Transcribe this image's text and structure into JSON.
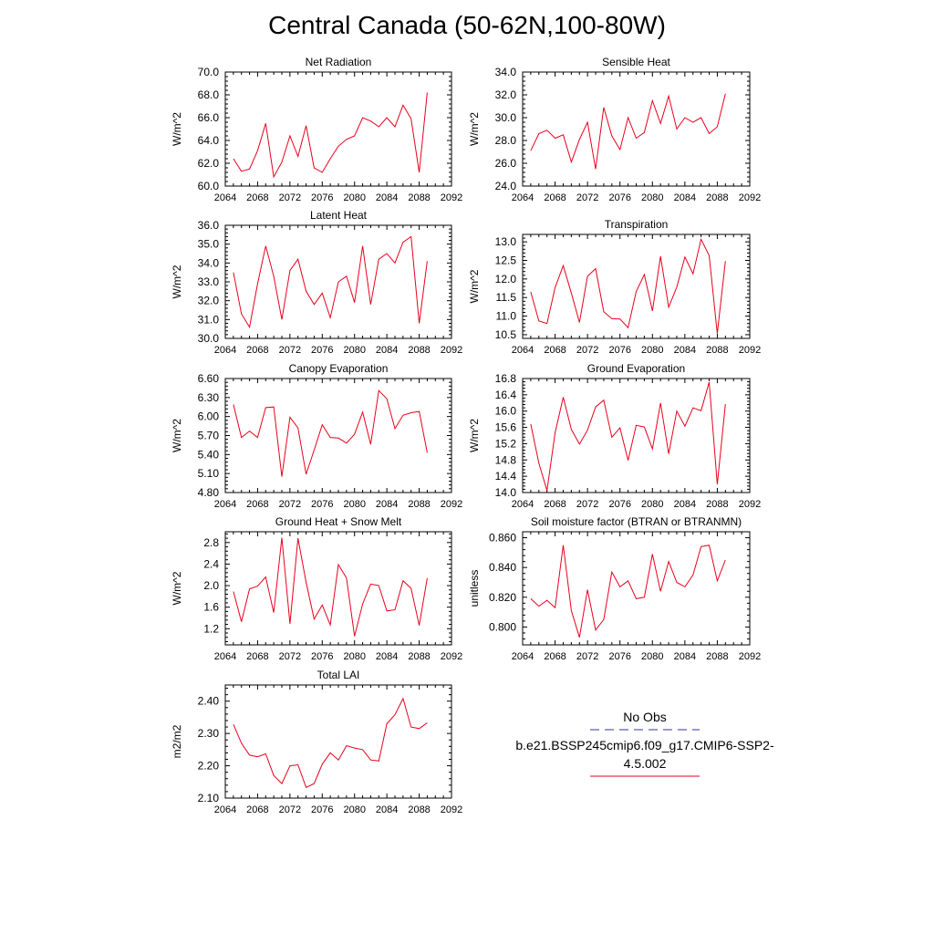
{
  "title": "Central Canada (50-62N,100-80W)",
  "legend": {
    "entries": [
      {
        "label": "No Obs",
        "color": "#3333aa",
        "style": "dashed"
      },
      {
        "label": "b.e21.BSSP245cmip6.f09_g17.CMIP6-SSP2-4.5.002",
        "color": "#e8001c",
        "style": "solid"
      }
    ]
  },
  "chart_data": [
    {
      "type": "line",
      "title": "Net Radiation",
      "ylabel": "W/m^2",
      "xlabel": "",
      "xlim": [
        2064,
        2092
      ],
      "ylim": [
        60.0,
        70.0
      ],
      "xticks": [
        "2064",
        "2068",
        "2072",
        "2076",
        "2080",
        "2084",
        "2088",
        "2092"
      ],
      "yticks": [
        "60.0",
        "62.0",
        "64.0",
        "66.0",
        "68.0",
        "70.0"
      ],
      "x": [
        2065,
        2066,
        2067,
        2068,
        2069,
        2070,
        2071,
        2072,
        2073,
        2074,
        2075,
        2076,
        2077,
        2078,
        2079,
        2080,
        2081,
        2082,
        2083,
        2084,
        2085,
        2086,
        2087,
        2088,
        2089
      ],
      "series": [
        {
          "color": "#e8001c",
          "values": [
            62.4,
            61.3,
            61.5,
            63.1,
            65.5,
            60.8,
            62.1,
            64.4,
            62.6,
            65.3,
            61.6,
            61.2,
            62.4,
            63.5,
            64.1,
            64.4,
            66.0,
            65.7,
            65.2,
            66.0,
            65.2,
            67.1,
            65.9,
            61.2,
            68.2
          ]
        }
      ]
    },
    {
      "type": "line",
      "title": "Sensible Heat",
      "ylabel": "W/m^2",
      "xlabel": "",
      "xlim": [
        2064,
        2092
      ],
      "ylim": [
        24.0,
        34.0
      ],
      "xticks": [
        "2064",
        "2068",
        "2072",
        "2076",
        "2080",
        "2084",
        "2088",
        "2092"
      ],
      "yticks": [
        "24.0",
        "26.0",
        "28.0",
        "30.0",
        "32.0",
        "34.0"
      ],
      "x": [
        2065,
        2066,
        2067,
        2068,
        2069,
        2070,
        2071,
        2072,
        2073,
        2074,
        2075,
        2076,
        2077,
        2078,
        2079,
        2080,
        2081,
        2082,
        2083,
        2084,
        2085,
        2086,
        2087,
        2088,
        2089
      ],
      "series": [
        {
          "color": "#e8001c",
          "values": [
            27.1,
            28.6,
            28.9,
            28.2,
            28.5,
            26.1,
            28.1,
            29.6,
            25.5,
            30.9,
            28.4,
            27.2,
            30.0,
            28.2,
            28.7,
            31.5,
            29.5,
            31.9,
            29.0,
            30.0,
            29.6,
            30.0,
            28.6,
            29.2,
            32.1
          ]
        }
      ]
    },
    {
      "type": "line",
      "title": "Latent Heat",
      "ylabel": "W/m^2",
      "xlabel": "",
      "xlim": [
        2064,
        2092
      ],
      "ylim": [
        30.0,
        36.0
      ],
      "xticks": [
        "2064",
        "2068",
        "2072",
        "2076",
        "2080",
        "2084",
        "2088",
        "2092"
      ],
      "yticks": [
        "30.0",
        "31.0",
        "32.0",
        "33.0",
        "34.0",
        "35.0",
        "36.0"
      ],
      "x": [
        2065,
        2066,
        2067,
        2068,
        2069,
        2070,
        2071,
        2072,
        2073,
        2074,
        2075,
        2076,
        2077,
        2078,
        2079,
        2080,
        2081,
        2082,
        2083,
        2084,
        2085,
        2086,
        2087,
        2088,
        2089
      ],
      "series": [
        {
          "color": "#e8001c",
          "values": [
            33.5,
            31.3,
            30.6,
            32.9,
            34.9,
            33.3,
            31.0,
            33.6,
            34.2,
            32.5,
            31.8,
            32.4,
            31.1,
            33.0,
            33.3,
            31.9,
            34.9,
            31.8,
            34.2,
            34.5,
            34.0,
            35.1,
            35.4,
            30.8,
            34.1
          ]
        }
      ]
    },
    {
      "type": "line",
      "title": "Transpiration",
      "ylabel": "W/m^2",
      "xlabel": "",
      "xlim": [
        2064,
        2092
      ],
      "ylim": [
        10.4,
        13.2
      ],
      "xticks": [
        "2064",
        "2068",
        "2072",
        "2076",
        "2080",
        "2084",
        "2088",
        "2092"
      ],
      "yticks": [
        "10.5",
        "11.0",
        "11.5",
        "12.0",
        "12.5",
        "13.0"
      ],
      "x": [
        2065,
        2066,
        2067,
        2068,
        2069,
        2070,
        2071,
        2072,
        2073,
        2074,
        2075,
        2076,
        2077,
        2078,
        2079,
        2080,
        2081,
        2082,
        2083,
        2084,
        2085,
        2086,
        2087,
        2088,
        2089
      ],
      "series": [
        {
          "color": "#e8001c",
          "values": [
            11.65,
            10.87,
            10.8,
            11.77,
            12.36,
            11.62,
            10.83,
            12.07,
            12.28,
            11.12,
            10.93,
            10.92,
            10.69,
            11.66,
            12.12,
            11.14,
            12.61,
            11.24,
            11.78,
            12.59,
            12.14,
            13.07,
            12.63,
            10.53,
            12.48
          ]
        }
      ]
    },
    {
      "type": "line",
      "title": "Canopy Evaporation",
      "ylabel": "W/m^2",
      "xlabel": "",
      "xlim": [
        2064,
        2092
      ],
      "ylim": [
        4.8,
        6.6
      ],
      "xticks": [
        "2064",
        "2068",
        "2072",
        "2076",
        "2080",
        "2084",
        "2088",
        "2092"
      ],
      "yticks": [
        "4.80",
        "5.10",
        "5.40",
        "5.70",
        "6.00",
        "6.30",
        "6.60"
      ],
      "x": [
        2065,
        2066,
        2067,
        2068,
        2069,
        2070,
        2071,
        2072,
        2073,
        2074,
        2075,
        2076,
        2077,
        2078,
        2079,
        2080,
        2081,
        2082,
        2083,
        2084,
        2085,
        2086,
        2087,
        2088,
        2089
      ],
      "series": [
        {
          "color": "#e8001c",
          "values": [
            6.19,
            5.67,
            5.77,
            5.67,
            6.14,
            6.15,
            5.05,
            5.99,
            5.82,
            5.09,
            5.47,
            5.87,
            5.67,
            5.66,
            5.58,
            5.72,
            6.07,
            5.56,
            6.41,
            6.28,
            5.81,
            6.02,
            6.06,
            6.08,
            5.43
          ]
        }
      ]
    },
    {
      "type": "line",
      "title": "Ground Evaporation",
      "ylabel": "W/m^2",
      "xlabel": "",
      "xlim": [
        2064,
        2092
      ],
      "ylim": [
        14.0,
        16.8
      ],
      "xticks": [
        "2064",
        "2068",
        "2072",
        "2076",
        "2080",
        "2084",
        "2088",
        "2092"
      ],
      "yticks": [
        "14.0",
        "14.4",
        "14.8",
        "15.2",
        "15.6",
        "16.0",
        "16.4",
        "16.8"
      ],
      "x": [
        2065,
        2066,
        2067,
        2068,
        2069,
        2070,
        2071,
        2072,
        2073,
        2074,
        2075,
        2076,
        2077,
        2078,
        2079,
        2080,
        2081,
        2082,
        2083,
        2084,
        2085,
        2086,
        2087,
        2088,
        2089
      ],
      "series": [
        {
          "color": "#e8001c",
          "values": [
            15.68,
            14.72,
            14.05,
            15.47,
            16.34,
            15.55,
            15.19,
            15.53,
            16.1,
            16.27,
            15.36,
            15.59,
            14.79,
            15.65,
            15.61,
            15.07,
            16.2,
            14.95,
            16.0,
            15.63,
            16.08,
            16.01,
            16.71,
            14.2,
            16.17
          ]
        }
      ]
    },
    {
      "type": "line",
      "title": "Ground Heat + Snow Melt",
      "ylabel": "W/m^2",
      "xlabel": "",
      "xlim": [
        2064,
        2092
      ],
      "ylim": [
        0.9,
        3.0
      ],
      "xticks": [
        "2064",
        "2068",
        "2072",
        "2076",
        "2080",
        "2084",
        "2088",
        "2092"
      ],
      "yticks": [
        "1.2",
        "1.6",
        "2.0",
        "2.4",
        "2.8"
      ],
      "x": [
        2065,
        2066,
        2067,
        2068,
        2069,
        2070,
        2071,
        2072,
        2073,
        2074,
        2075,
        2076,
        2077,
        2078,
        2079,
        2080,
        2081,
        2082,
        2083,
        2084,
        2085,
        2086,
        2087,
        2088,
        2089
      ],
      "series": [
        {
          "color": "#e8001c",
          "values": [
            1.89,
            1.33,
            1.94,
            1.99,
            2.16,
            1.5,
            2.89,
            1.29,
            2.88,
            2.06,
            1.38,
            1.64,
            1.27,
            2.39,
            2.14,
            1.06,
            1.66,
            2.03,
            2.0,
            1.53,
            1.55,
            2.09,
            1.95,
            1.26,
            2.14
          ]
        }
      ]
    },
    {
      "type": "line",
      "title": "Soil moisture factor (BTRAN or BTRANMN)",
      "ylabel": "unitless",
      "xlabel": "",
      "xlim": [
        2064,
        2092
      ],
      "ylim": [
        0.788,
        0.864
      ],
      "xticks": [
        "2064",
        "2068",
        "2072",
        "2076",
        "2080",
        "2084",
        "2088",
        "2092"
      ],
      "yticks": [
        "0.800",
        "0.820",
        "0.840",
        "0.860"
      ],
      "x": [
        2065,
        2066,
        2067,
        2068,
        2069,
        2070,
        2071,
        2072,
        2073,
        2074,
        2075,
        2076,
        2077,
        2078,
        2079,
        2080,
        2081,
        2082,
        2083,
        2084,
        2085,
        2086,
        2087,
        2088,
        2089
      ],
      "series": [
        {
          "color": "#e8001c",
          "values": [
            0.819,
            0.814,
            0.818,
            0.813,
            0.855,
            0.811,
            0.793,
            0.825,
            0.798,
            0.805,
            0.837,
            0.827,
            0.831,
            0.819,
            0.82,
            0.849,
            0.824,
            0.844,
            0.83,
            0.827,
            0.835,
            0.854,
            0.855,
            0.831,
            0.845
          ]
        }
      ]
    },
    {
      "type": "line",
      "title": "Total LAI",
      "ylabel": "m2/m2",
      "xlabel": "",
      "xlim": [
        2064,
        2092
      ],
      "ylim": [
        2.1,
        2.45
      ],
      "xticks": [
        "2064",
        "2068",
        "2072",
        "2076",
        "2080",
        "2084",
        "2088",
        "2092"
      ],
      "yticks": [
        "2.10",
        "2.20",
        "2.30",
        "2.40"
      ],
      "x": [
        2065,
        2066,
        2067,
        2068,
        2069,
        2070,
        2071,
        2072,
        2073,
        2074,
        2075,
        2076,
        2077,
        2078,
        2079,
        2080,
        2081,
        2082,
        2083,
        2084,
        2085,
        2086,
        2087,
        2088,
        2089
      ],
      "series": [
        {
          "color": "#e8001c",
          "values": [
            2.328,
            2.27,
            2.233,
            2.228,
            2.237,
            2.17,
            2.145,
            2.2,
            2.203,
            2.133,
            2.145,
            2.205,
            2.24,
            2.218,
            2.262,
            2.255,
            2.25,
            2.218,
            2.215,
            2.33,
            2.358,
            2.408,
            2.32,
            2.315,
            2.333
          ]
        }
      ]
    }
  ]
}
